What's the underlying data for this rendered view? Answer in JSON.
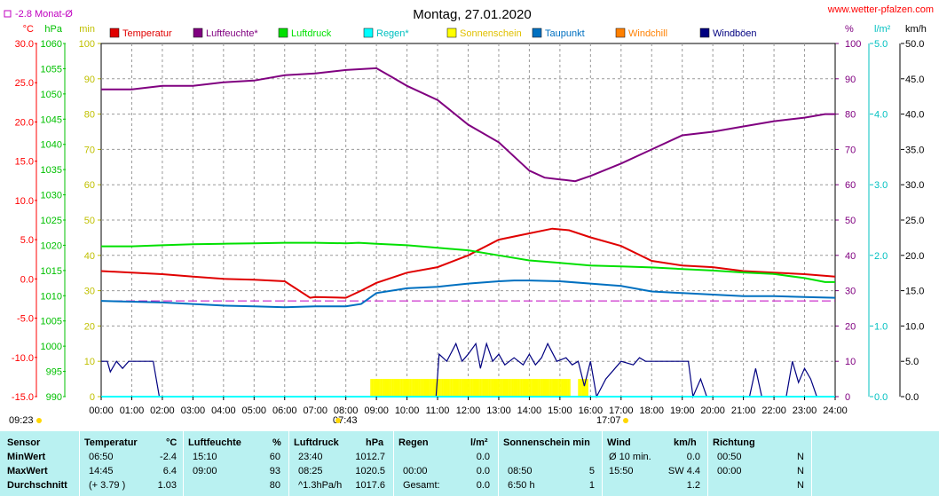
{
  "header": {
    "title": "Montag, 27.01.2020",
    "site": "www.wetter-pfalzen.com",
    "month_avg": "-2.8 Monat-Ø",
    "sunrise": "07:43",
    "sunset": "17:07",
    "page_time": "09:23"
  },
  "axes": {
    "left": [
      {
        "unit": "°C",
        "color": "#ff0000",
        "min": -15,
        "max": 30,
        "ticks": [
          "30.0",
          "25.0",
          "20.0",
          "15.0",
          "10.0",
          "5.0",
          "0.0",
          "-5.0",
          "-10.0",
          "-15.0"
        ]
      },
      {
        "unit": "hPa",
        "color": "#00c000",
        "min": 990,
        "max": 1060,
        "ticks": [
          "1060",
          "1055",
          "1050",
          "1045",
          "1040",
          "1035",
          "1030",
          "1025",
          "1020",
          "1015",
          "1010",
          "1005",
          "1000",
          "995",
          "990"
        ]
      },
      {
        "unit": "min",
        "color": "#c0c000",
        "min": 0,
        "max": 100,
        "ticks": [
          "100",
          "90",
          "80",
          "70",
          "60",
          "50",
          "40",
          "30",
          "20",
          "10",
          "0"
        ]
      }
    ],
    "right": [
      {
        "unit": "%",
        "color": "#800080",
        "min": 0,
        "max": 100,
        "ticks": [
          "100",
          "90",
          "80",
          "70",
          "60",
          "50",
          "40",
          "30",
          "20",
          "10",
          "0"
        ]
      },
      {
        "unit": "l/m²",
        "color": "#00c0c0",
        "min": 0,
        "max": 5,
        "ticks": [
          "5.0",
          "4.0",
          "3.0",
          "2.0",
          "1.0",
          "0.0"
        ]
      },
      {
        "unit": "km/h",
        "color": "#000000",
        "min": 0,
        "max": 50,
        "ticks": [
          "50.0",
          "45.0",
          "40.0",
          "35.0",
          "30.0",
          "25.0",
          "20.0",
          "15.0",
          "10.0",
          "5.0",
          "0.0"
        ]
      }
    ],
    "x_ticks": [
      "00:00",
      "01:00",
      "02:00",
      "03:00",
      "04:00",
      "05:00",
      "06:00",
      "07:00",
      "08:00",
      "09:00",
      "10:00",
      "11:00",
      "12:00",
      "13:00",
      "14:00",
      "15:00",
      "16:00",
      "17:00",
      "18:00",
      "19:00",
      "20:00",
      "21:00",
      "22:00",
      "23:00",
      "24:00"
    ]
  },
  "legend": [
    {
      "name": "Temperatur",
      "color": "#e00000"
    },
    {
      "name": "Luftfeuchte*",
      "color": "#800080"
    },
    {
      "name": "Luftdruck",
      "color": "#00e000"
    },
    {
      "name": "Regen*",
      "color": "#00ffff"
    },
    {
      "name": "Sonnenschein",
      "color": "#ffff00"
    },
    {
      "name": "Taupunkt",
      "color": "#0070c0"
    },
    {
      "name": "Windchill",
      "color": "#ff8000"
    },
    {
      "name": "Windböen",
      "color": "#000080"
    }
  ],
  "chart_data": {
    "type": "line",
    "title": "Montag, 27.01.2020",
    "x_unit": "hour",
    "x_range": [
      0,
      24
    ],
    "grid": true,
    "legend_position": "top",
    "month_avg_temperature": -2.8,
    "series": [
      {
        "name": "Temperatur",
        "axis": "°C",
        "color": "#e00000",
        "points": [
          [
            0,
            1.0
          ],
          [
            1,
            0.8
          ],
          [
            2,
            0.6
          ],
          [
            3,
            0.3
          ],
          [
            4,
            0.0
          ],
          [
            5,
            -0.1
          ],
          [
            6,
            -0.3
          ],
          [
            6.83,
            -2.4
          ],
          [
            7,
            -2.3
          ],
          [
            8,
            -2.4
          ],
          [
            8.5,
            -1.5
          ],
          [
            9,
            -0.5
          ],
          [
            10,
            0.8
          ],
          [
            11,
            1.5
          ],
          [
            12,
            3.0
          ],
          [
            13,
            5.0
          ],
          [
            14,
            5.8
          ],
          [
            14.75,
            6.4
          ],
          [
            15.3,
            6.2
          ],
          [
            16,
            5.3
          ],
          [
            17,
            4.2
          ],
          [
            18,
            2.3
          ],
          [
            19,
            1.7
          ],
          [
            20,
            1.5
          ],
          [
            21,
            1.0
          ],
          [
            22,
            0.8
          ],
          [
            23,
            0.6
          ],
          [
            24,
            0.3
          ]
        ]
      },
      {
        "name": "Luftfeuchte*",
        "axis": "%",
        "color": "#800080",
        "points": [
          [
            0,
            87
          ],
          [
            1,
            87
          ],
          [
            2,
            88
          ],
          [
            3,
            88
          ],
          [
            4,
            89
          ],
          [
            5,
            89.5
          ],
          [
            6,
            91
          ],
          [
            7,
            91.5
          ],
          [
            8,
            92.5
          ],
          [
            9,
            93
          ],
          [
            9.5,
            90.5
          ],
          [
            10,
            88
          ],
          [
            11,
            84
          ],
          [
            12,
            77
          ],
          [
            13,
            72
          ],
          [
            14,
            64
          ],
          [
            14.5,
            62
          ],
          [
            15,
            61.5
          ],
          [
            15.5,
            61
          ],
          [
            16,
            62.5
          ],
          [
            17,
            66
          ],
          [
            18,
            70
          ],
          [
            19,
            74
          ],
          [
            20,
            75
          ],
          [
            21,
            76.5
          ],
          [
            22,
            78
          ],
          [
            23,
            79
          ],
          [
            23.67,
            80
          ],
          [
            24,
            80
          ]
        ]
      },
      {
        "name": "Luftdruck",
        "axis": "hPa",
        "color": "#00e000",
        "points": [
          [
            0,
            1019.8
          ],
          [
            1,
            1019.8
          ],
          [
            2,
            1020.0
          ],
          [
            3,
            1020.2
          ],
          [
            4,
            1020.3
          ],
          [
            5,
            1020.4
          ],
          [
            6,
            1020.5
          ],
          [
            7,
            1020.5
          ],
          [
            8,
            1020.4
          ],
          [
            8.42,
            1020.5
          ],
          [
            9,
            1020.3
          ],
          [
            10,
            1020.0
          ],
          [
            11,
            1019.5
          ],
          [
            12,
            1019.0
          ],
          [
            13,
            1018.0
          ],
          [
            14,
            1017.0
          ],
          [
            15,
            1016.5
          ],
          [
            16,
            1016.0
          ],
          [
            17,
            1015.8
          ],
          [
            18,
            1015.6
          ],
          [
            19,
            1015.3
          ],
          [
            20,
            1015.0
          ],
          [
            21,
            1014.6
          ],
          [
            22,
            1014.3
          ],
          [
            23,
            1013.5
          ],
          [
            23.67,
            1012.7
          ],
          [
            24,
            1012.7
          ]
        ]
      },
      {
        "name": "Taupunkt",
        "axis": "°C",
        "color": "#0070c0",
        "points": [
          [
            0,
            -2.8
          ],
          [
            1,
            -2.9
          ],
          [
            2,
            -3.0
          ],
          [
            3,
            -3.2
          ],
          [
            4,
            -3.4
          ],
          [
            5,
            -3.5
          ],
          [
            6,
            -3.6
          ],
          [
            7,
            -3.5
          ],
          [
            8,
            -3.5
          ],
          [
            8.5,
            -3.2
          ],
          [
            9,
            -1.8
          ],
          [
            10,
            -1.2
          ],
          [
            11,
            -1.0
          ],
          [
            12,
            -0.6
          ],
          [
            13,
            -0.3
          ],
          [
            13.5,
            -0.2
          ],
          [
            14,
            -0.2
          ],
          [
            15,
            -0.3
          ],
          [
            16,
            -0.6
          ],
          [
            17,
            -0.9
          ],
          [
            18,
            -1.6
          ],
          [
            19,
            -1.8
          ],
          [
            20,
            -2.0
          ],
          [
            21,
            -2.2
          ],
          [
            22,
            -2.2
          ],
          [
            23,
            -2.3
          ],
          [
            24,
            -2.4
          ]
        ]
      },
      {
        "name": "Windböen",
        "axis": "km/h",
        "color": "#000080",
        "points": [
          [
            0,
            5
          ],
          [
            0.2,
            5
          ],
          [
            0.3,
            3.5
          ],
          [
            0.5,
            5
          ],
          [
            0.7,
            4
          ],
          [
            0.9,
            5
          ],
          [
            1.7,
            5
          ],
          [
            1.9,
            0
          ],
          [
            10.95,
            0
          ],
          [
            11.05,
            6
          ],
          [
            11.3,
            5
          ],
          [
            11.6,
            7.5
          ],
          [
            11.8,
            5
          ],
          [
            12,
            6
          ],
          [
            12.25,
            7.5
          ],
          [
            12.4,
            4
          ],
          [
            12.6,
            7.5
          ],
          [
            12.8,
            5
          ],
          [
            13,
            6
          ],
          [
            13.2,
            4.5
          ],
          [
            13.5,
            5.5
          ],
          [
            13.8,
            4.5
          ],
          [
            14,
            6
          ],
          [
            14.2,
            4.5
          ],
          [
            14.4,
            5.5
          ],
          [
            14.6,
            7.5
          ],
          [
            14.9,
            5
          ],
          [
            15.2,
            5.5
          ],
          [
            15.4,
            4.5
          ],
          [
            15.6,
            5
          ],
          [
            15.8,
            1.5
          ],
          [
            16,
            5
          ],
          [
            16.2,
            0
          ],
          [
            16.5,
            2.5
          ],
          [
            16.8,
            4
          ],
          [
            17,
            5
          ],
          [
            17.4,
            4.5
          ],
          [
            17.6,
            5.5
          ],
          [
            17.8,
            5
          ],
          [
            19.2,
            5
          ],
          [
            19.35,
            0
          ],
          [
            19.6,
            2.5
          ],
          [
            19.8,
            0
          ],
          [
            21.2,
            0
          ],
          [
            21.4,
            4
          ],
          [
            21.6,
            0
          ],
          [
            22.4,
            0
          ],
          [
            22.6,
            5
          ],
          [
            22.8,
            2
          ],
          [
            23,
            4
          ],
          [
            23.2,
            2.5
          ],
          [
            23.4,
            0
          ]
        ]
      },
      {
        "name": "Regen*",
        "axis": "l/m²",
        "color": "#00ffff",
        "points": [
          [
            0,
            0
          ],
          [
            24,
            0
          ]
        ]
      }
    ],
    "sunshine_bars": {
      "name": "Sonnenschein",
      "axis": "min",
      "color": "#ffff00",
      "from": 8.8,
      "to": 15.9,
      "value": 5
    },
    "month_avg_line": {
      "label": "-2.8 Monat-Ø",
      "axis": "°C",
      "value": -2.8,
      "color": "#c000c0"
    }
  },
  "table": {
    "headers": [
      "Sensor",
      "Temperatur",
      "°C",
      "Luftfeuchte",
      "%",
      "Luftdruck",
      "hPa",
      "Regen",
      "l/m²",
      "Sonnenschein min",
      "Wind",
      "km/h",
      "Richtung"
    ],
    "rows": [
      {
        "label": "MinWert",
        "t_time": "06:50",
        "t_val": "-2.4",
        "h_time": "15:10",
        "h_val": "60",
        "p_time": "23:40",
        "p_val": "1012.7",
        "r_time": "",
        "r_val": "0.0",
        "s_time": "",
        "s_val": "",
        "w_time": "Ø 10 min.",
        "w_val": "0.0",
        "d_time": "00:50",
        "d_val": "N"
      },
      {
        "label": "MaxWert",
        "t_time": "14:45",
        "t_val": "6.4",
        "h_time": "09:00",
        "h_val": "93",
        "p_time": "08:25",
        "p_val": "1020.5",
        "r_time": "00:00",
        "r_val": "0.0",
        "s_time": "08:50",
        "s_val": "5",
        "w_time": "15:50",
        "w_val": "SW 4.4",
        "d_time": "00:00",
        "d_val": "N"
      },
      {
        "label": "Durchschnitt",
        "t_time": "(+ 3.79 )",
        "t_val": "1.03",
        "h_time": "",
        "h_val": "80",
        "p_time": "^1.3hPa/h",
        "p_val": "1017.6",
        "r_time": "Gesamt:",
        "r_val": "0.0",
        "s_time": "6:50 h",
        "s_val": "1",
        "w_time": "",
        "w_val": "1.2",
        "d_time": "",
        "d_val": "N"
      }
    ]
  }
}
